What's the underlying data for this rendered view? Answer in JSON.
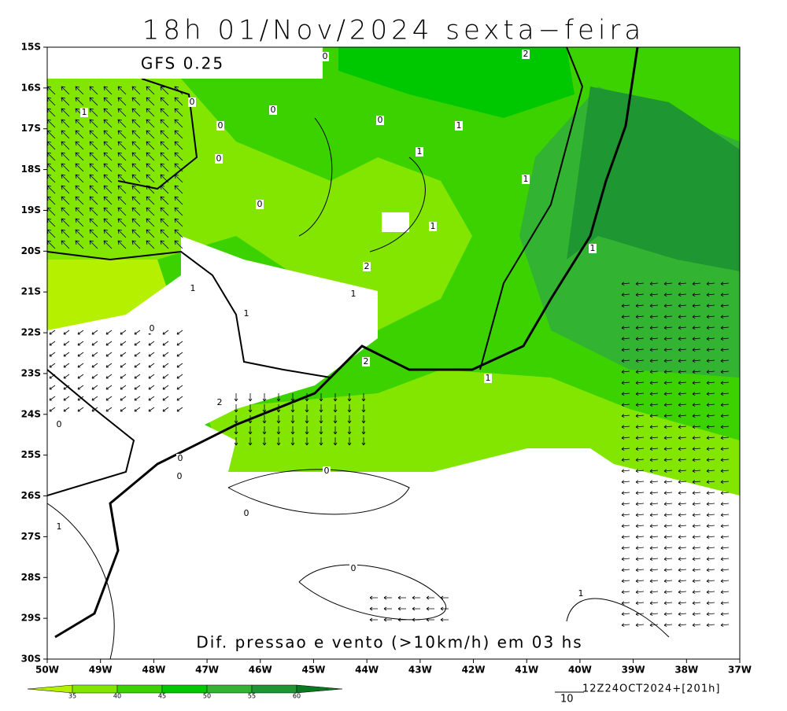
{
  "title": "18h 01/Nov/2024 sexta−feira",
  "model": "GFS 0.25",
  "caption": "Dif. pressao e vento (>10km/h) em 03 hs",
  "run": "12Z24OCT2024+[201h]",
  "scale_label": "10",
  "lat_labels": [
    "15S",
    "16S",
    "17S",
    "18S",
    "19S",
    "20S",
    "21S",
    "22S",
    "23S",
    "24S",
    "25S",
    "26S",
    "27S",
    "28S",
    "29S",
    "30S"
  ],
  "lon_labels": [
    "50W",
    "49W",
    "48W",
    "47W",
    "46W",
    "45W",
    "44W",
    "43W",
    "42W",
    "41W",
    "40W",
    "39W",
    "38W",
    "37W"
  ],
  "colorbar": {
    "levels": [
      35,
      40,
      45,
      50,
      55,
      60
    ],
    "colors": [
      "#b4f000",
      "#82e600",
      "#3cd200",
      "#00c800",
      "#32b432",
      "#1e9632",
      "#0a7820"
    ]
  },
  "contour_labels": [
    "0",
    "0",
    "0",
    "0",
    "0",
    "0",
    "0",
    "0",
    "0",
    "0",
    "0",
    "0",
    "0",
    "0",
    "1",
    "1",
    "1",
    "1",
    "1",
    "1",
    "1",
    "1",
    "1",
    "1",
    "1",
    "1",
    "2",
    "2",
    "2",
    "2"
  ]
}
